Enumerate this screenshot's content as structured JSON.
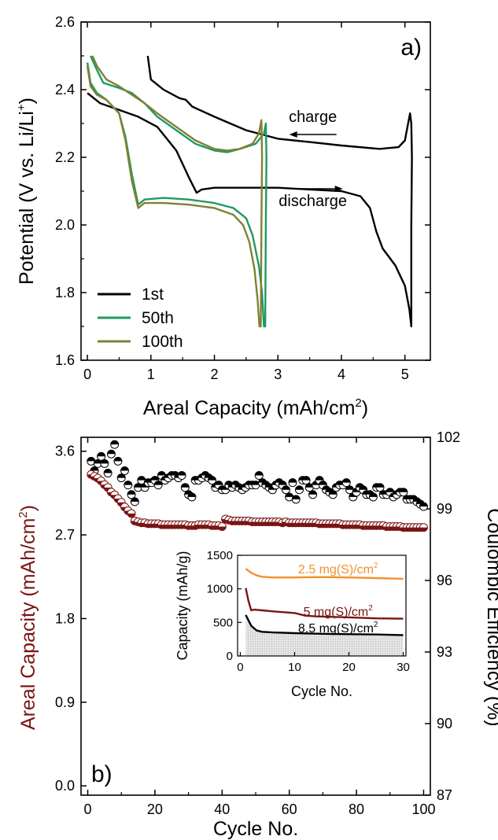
{
  "chart_data": [
    {
      "type": "line",
      "panel_label": "a)",
      "xlabel": "Areal Capacity (mAh/cm",
      "xlabel_sup": "2",
      "xlabel_end": ")",
      "ylabel": "Potential (V vs. Li/Li",
      "ylabel_sup": "+",
      "ylabel_end": ")",
      "xlim": [
        -0.1,
        5.4
      ],
      "ylim": [
        1.6,
        2.6
      ],
      "xticks": [
        "0",
        "1",
        "2",
        "3",
        "4",
        "5"
      ],
      "yticks": [
        "1.6",
        "1.8",
        "2.0",
        "2.2",
        "2.4",
        "2.6"
      ],
      "annotations": [
        {
          "text": "charge",
          "x": 3.55,
          "y": 2.3,
          "arrow_dir": "left"
        },
        {
          "text": "discharge",
          "x": 3.55,
          "y": 2.065,
          "arrow_dir": "right"
        }
      ],
      "legend_position": "bottom-left",
      "series": [
        {
          "name": "1st",
          "color": "#000000",
          "points": [
            [
              0,
              2.39
            ],
            [
              0.2,
              2.36
            ],
            [
              0.5,
              2.34
            ],
            [
              0.8,
              2.32
            ],
            [
              1.1,
              2.29
            ],
            [
              1.4,
              2.22
            ],
            [
              1.6,
              2.14
            ],
            [
              1.72,
              2.095
            ],
            [
              1.8,
              2.105
            ],
            [
              2.0,
              2.11
            ],
            [
              2.5,
              2.11
            ],
            [
              3.0,
              2.11
            ],
            [
              3.5,
              2.105
            ],
            [
              4.0,
              2.1
            ],
            [
              4.3,
              2.085
            ],
            [
              4.45,
              2.05
            ],
            [
              4.55,
              1.98
            ],
            [
              4.65,
              1.93
            ],
            [
              4.85,
              1.88
            ],
            [
              5.0,
              1.82
            ],
            [
              5.07,
              1.75
            ],
            [
              5.1,
              1.7
            ],
            [
              5.1,
              1.7
            ],
            [
              5.1,
              2.0
            ],
            [
              5.11,
              2.2
            ],
            [
              5.1,
              2.3
            ],
            [
              5.08,
              2.33
            ],
            [
              5.04,
              2.29
            ],
            [
              5.0,
              2.25
            ],
            [
              4.9,
              2.23
            ],
            [
              4.6,
              2.225
            ],
            [
              4.0,
              2.235
            ],
            [
              3.5,
              2.245
            ],
            [
              3.0,
              2.255
            ],
            [
              2.5,
              2.28
            ],
            [
              2.0,
              2.32
            ],
            [
              1.65,
              2.35
            ],
            [
              1.55,
              2.37
            ],
            [
              1.45,
              2.375
            ],
            [
              1.2,
              2.4
            ],
            [
              1.0,
              2.43
            ],
            [
              0.95,
              2.5
            ]
          ]
        },
        {
          "name": "50th",
          "color": "#1e9a62",
          "points": [
            [
              0,
              2.48
            ],
            [
              0.05,
              2.42
            ],
            [
              0.15,
              2.39
            ],
            [
              0.3,
              2.37
            ],
            [
              0.5,
              2.33
            ],
            [
              0.6,
              2.26
            ],
            [
              0.7,
              2.15
            ],
            [
              0.8,
              2.06
            ],
            [
              0.9,
              2.075
            ],
            [
              1.2,
              2.08
            ],
            [
              1.6,
              2.075
            ],
            [
              2.0,
              2.065
            ],
            [
              2.3,
              2.05
            ],
            [
              2.5,
              2.02
            ],
            [
              2.6,
              1.97
            ],
            [
              2.7,
              1.88
            ],
            [
              2.75,
              1.8
            ],
            [
              2.78,
              1.7
            ],
            [
              2.8,
              1.7
            ],
            [
              2.81,
              2.0
            ],
            [
              2.82,
              2.2
            ],
            [
              2.81,
              2.3
            ],
            [
              2.78,
              2.27
            ],
            [
              2.65,
              2.24
            ],
            [
              2.4,
              2.225
            ],
            [
              2.2,
              2.215
            ],
            [
              2.0,
              2.22
            ],
            [
              1.7,
              2.24
            ],
            [
              1.4,
              2.28
            ],
            [
              1.1,
              2.32
            ],
            [
              0.9,
              2.36
            ],
            [
              0.7,
              2.39
            ],
            [
              0.5,
              2.405
            ],
            [
              0.25,
              2.42
            ],
            [
              0.12,
              2.47
            ],
            [
              0.05,
              2.5
            ]
          ]
        },
        {
          "name": "100th",
          "color": "#808034",
          "points": [
            [
              0,
              2.47
            ],
            [
              0.05,
              2.41
            ],
            [
              0.15,
              2.385
            ],
            [
              0.3,
              2.37
            ],
            [
              0.5,
              2.33
            ],
            [
              0.6,
              2.25
            ],
            [
              0.7,
              2.13
            ],
            [
              0.8,
              2.05
            ],
            [
              0.9,
              2.065
            ],
            [
              1.2,
              2.065
            ],
            [
              1.6,
              2.06
            ],
            [
              2.0,
              2.05
            ],
            [
              2.3,
              2.03
            ],
            [
              2.45,
              2.0
            ],
            [
              2.55,
              1.95
            ],
            [
              2.63,
              1.87
            ],
            [
              2.68,
              1.78
            ],
            [
              2.71,
              1.7
            ],
            [
              2.73,
              1.7
            ],
            [
              2.74,
              2.0
            ],
            [
              2.75,
              2.2
            ],
            [
              2.74,
              2.31
            ],
            [
              2.7,
              2.27
            ],
            [
              2.6,
              2.24
            ],
            [
              2.4,
              2.225
            ],
            [
              2.2,
              2.22
            ],
            [
              2.0,
              2.225
            ],
            [
              1.7,
              2.25
            ],
            [
              1.4,
              2.29
            ],
            [
              1.1,
              2.33
            ],
            [
              0.9,
              2.36
            ],
            [
              0.7,
              2.385
            ],
            [
              0.5,
              2.41
            ],
            [
              0.3,
              2.43
            ],
            [
              0.15,
              2.47
            ],
            [
              0.08,
              2.5
            ]
          ]
        }
      ]
    },
    {
      "type": "scatter",
      "panel_label": "b)",
      "xlabel": "Cycle No.",
      "ylabel_left": "Areal Capacity (mAh/cm",
      "ylabel_left_sup": "2",
      "ylabel_left_end": ")",
      "ylabel_right": "Coulombic Efficiency (%)",
      "left_axis_color": "#7a1414",
      "xlim": [
        -2,
        102
      ],
      "ylim_left": [
        -0.1,
        3.75
      ],
      "ylim_right": [
        87,
        102
      ],
      "xticks": [
        "0",
        "20",
        "40",
        "60",
        "80",
        "100"
      ],
      "yticks_left": [
        "0.0",
        "0.9",
        "1.8",
        "2.7",
        "3.6"
      ],
      "yticks_right": [
        "87",
        "90",
        "93",
        "96",
        "99",
        "102"
      ],
      "series": [
        {
          "name": "Areal Capacity",
          "axis": "left",
          "color": "#7a1414",
          "values": [
            3.35,
            3.33,
            3.31,
            3.28,
            3.24,
            3.21,
            3.16,
            3.13,
            3.09,
            3.05,
            3.0,
            2.96,
            2.93,
            2.85,
            2.84,
            2.83,
            2.83,
            2.82,
            2.82,
            2.82,
            2.82,
            2.81,
            2.81,
            2.81,
            2.81,
            2.81,
            2.81,
            2.81,
            2.81,
            2.8,
            2.8,
            2.8,
            2.81,
            2.81,
            2.81,
            2.81,
            2.8,
            2.8,
            2.8,
            2.79,
            2.87,
            2.86,
            2.85,
            2.85,
            2.85,
            2.85,
            2.85,
            2.85,
            2.84,
            2.84,
            2.84,
            2.84,
            2.84,
            2.84,
            2.84,
            2.84,
            2.84,
            2.83,
            2.84,
            2.83,
            2.83,
            2.83,
            2.83,
            2.83,
            2.83,
            2.83,
            2.83,
            2.83,
            2.82,
            2.82,
            2.82,
            2.82,
            2.82,
            2.82,
            2.82,
            2.81,
            2.81,
            2.81,
            2.81,
            2.81,
            2.81,
            2.8,
            2.8,
            2.8,
            2.8,
            2.8,
            2.8,
            2.8,
            2.79,
            2.79,
            2.79,
            2.79,
            2.79,
            2.78,
            2.78,
            2.78,
            2.78,
            2.78,
            2.78,
            2.78
          ]
        },
        {
          "name": "Coulombic Efficiency",
          "axis": "right",
          "color": "#000000",
          "values": [
            101,
            100.6,
            100.9,
            101.2,
            100.9,
            100.5,
            101.3,
            101.7,
            101,
            100.3,
            100.6,
            100,
            99.6,
            99.3,
            99.9,
            100.2,
            99.9,
            100.1,
            100.1,
            100.2,
            100,
            100.4,
            100.2,
            100.3,
            100.4,
            100.4,
            100.3,
            100.4,
            99.9,
            99.6,
            99.5,
            100.2,
            100.2,
            100.3,
            100.4,
            100.3,
            100.2,
            99.9,
            100,
            99.8,
            99.8,
            100,
            99.9,
            100,
            99.9,
            99.8,
            99.9,
            100,
            100,
            100,
            100.4,
            100.1,
            100,
            99.9,
            99.8,
            100,
            100.1,
            100,
            99.8,
            99.5,
            100.1,
            99.4,
            99.8,
            100.2,
            100.2,
            99.9,
            99.6,
            100,
            100.2,
            100,
            99.8,
            99.7,
            99.6,
            99.9,
            100,
            100,
            100.1,
            99.8,
            99.5,
            99.7,
            99.9,
            99.8,
            99.6,
            99.6,
            99.5,
            99.9,
            99.9,
            99.6,
            99.6,
            99.7,
            99.5,
            99.6,
            99.7,
            99.7,
            99.4,
            99.4,
            99.4,
            99.3,
            99.2,
            99.1
          ]
        }
      ]
    },
    {
      "type": "line",
      "role": "inset",
      "xlabel": "Cycle No.",
      "ylabel": "Capacity (mAh/g)",
      "xlim": [
        -0.5,
        30.5
      ],
      "ylim": [
        0,
        1500
      ],
      "xticks": [
        "0",
        "10",
        "20",
        "30"
      ],
      "yticks": [
        "0",
        "500",
        "1000",
        "1500"
      ],
      "series": [
        {
          "name": "2.5 mg(S)/cm",
          "name_sup": "2",
          "color": "#f0922e",
          "points": [
            [
              1,
              1300
            ],
            [
              2,
              1240
            ],
            [
              3,
              1200
            ],
            [
              4,
              1180
            ],
            [
              6,
              1170
            ],
            [
              10,
              1170
            ],
            [
              15,
              1175
            ],
            [
              20,
              1170
            ],
            [
              25,
              1160
            ],
            [
              30,
              1150
            ]
          ]
        },
        {
          "name": "5 mg(S)/cm",
          "name_sup": "2",
          "color": "#7a1414",
          "points": [
            [
              1,
              1010
            ],
            [
              1.5,
              820
            ],
            [
              2,
              680
            ],
            [
              2.5,
              690
            ],
            [
              4,
              680
            ],
            [
              6,
              665
            ],
            [
              10,
              640
            ],
            [
              12,
              600
            ],
            [
              14,
              590
            ],
            [
              20,
              575
            ],
            [
              25,
              560
            ],
            [
              30,
              555
            ]
          ]
        },
        {
          "name": "8.5 mg(S)/cm",
          "name_sup": "2",
          "color": "#000000",
          "points": [
            [
              1,
              610
            ],
            [
              2,
              450
            ],
            [
              3,
              380
            ],
            [
              4,
              360
            ],
            [
              6,
              350
            ],
            [
              10,
              340
            ],
            [
              15,
              330
            ],
            [
              20,
              325
            ],
            [
              25,
              320
            ],
            [
              30,
              310
            ]
          ]
        }
      ]
    }
  ]
}
